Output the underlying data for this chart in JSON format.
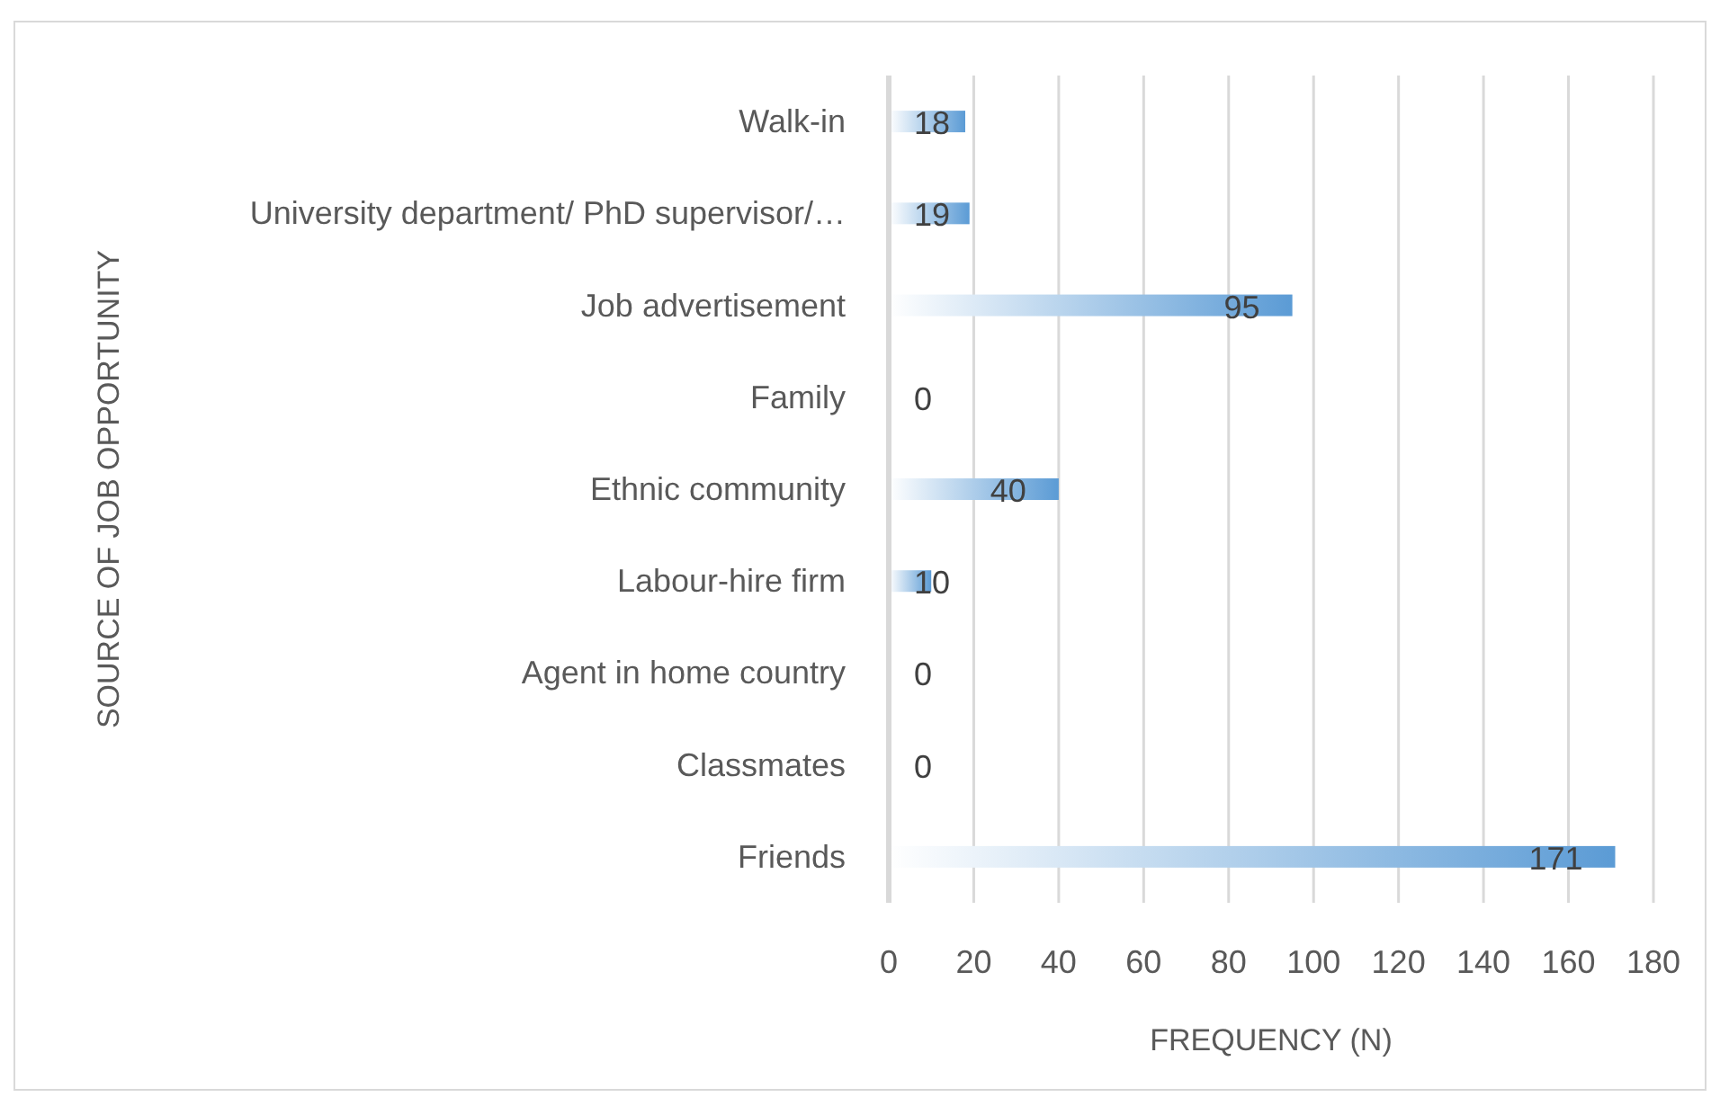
{
  "chart_data": {
    "type": "bar",
    "orientation": "horizontal",
    "xlabel": "FREQUENCY (N)",
    "ylabel": "SOURCE OF JOB OPPORTUNITY",
    "categories": [
      "Walk-in",
      "University department/ PhD supervisor/…",
      "Job advertisement",
      "Family",
      "Ethnic community",
      "Labour-hire firm",
      "Agent in home country",
      "Classmates",
      "Friends"
    ],
    "values": [
      18,
      19,
      95,
      0,
      40,
      10,
      0,
      0,
      171
    ],
    "color": "#5b9bd5",
    "xlim": [
      0,
      180
    ],
    "xticks": [
      0,
      20,
      40,
      60,
      80,
      100,
      120,
      140,
      160,
      180
    ],
    "grid": "x",
    "data_labels": true
  }
}
